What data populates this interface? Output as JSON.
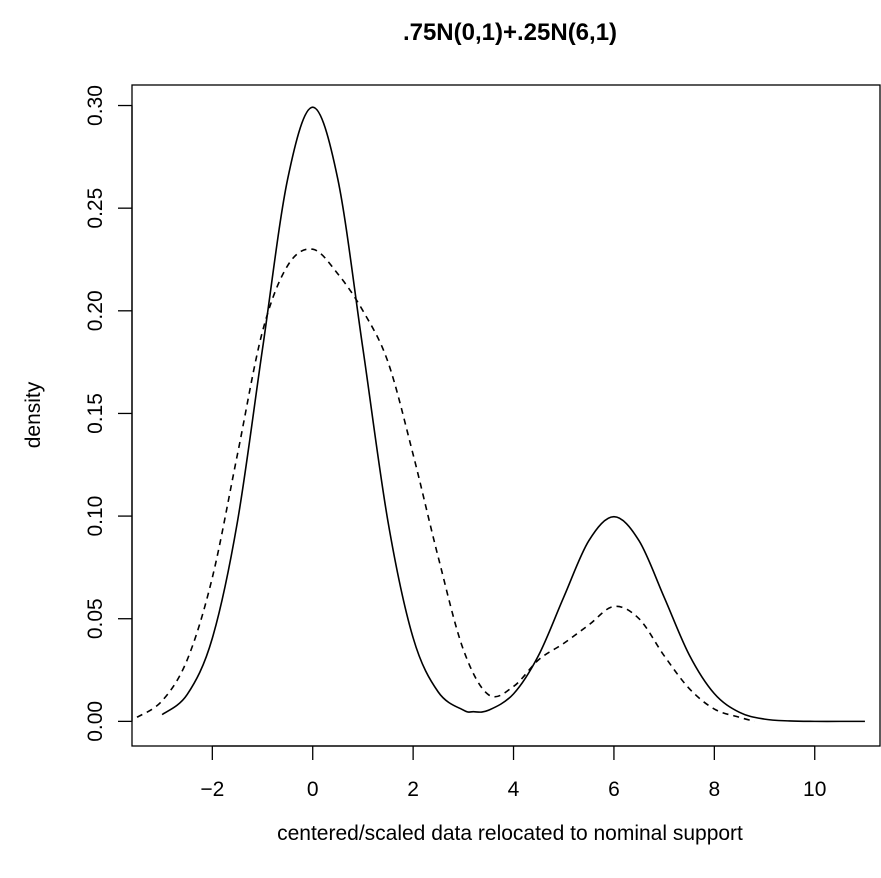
{
  "chart_data": {
    "type": "line",
    "title": ".75N(0,1)+.25N(6,1)",
    "xlabel": "centered/scaled data relocated to nominal support",
    "ylabel": "density",
    "xlim": [
      -3.6,
      11.3
    ],
    "ylim": [
      -0.012,
      0.31
    ],
    "x_ticks": [
      -2,
      0,
      2,
      4,
      6,
      8,
      10
    ],
    "x_tick_labels": [
      "−2",
      "0",
      "2",
      "4",
      "6",
      "8",
      "10"
    ],
    "y_ticks": [
      0.0,
      0.05,
      0.1,
      0.15,
      0.2,
      0.25,
      0.3
    ],
    "y_tick_labels": [
      "0.00",
      "0.05",
      "0.10",
      "0.15",
      "0.20",
      "0.25",
      "0.30"
    ],
    "grid": false,
    "series": [
      {
        "line_style": "solid",
        "color": "#000000",
        "x": [
          -3.0,
          -2.5,
          -2.0,
          -1.5,
          -1.0,
          -0.5,
          0.0,
          0.5,
          1.0,
          1.5,
          2.0,
          2.5,
          3.0,
          3.2,
          3.5,
          4.0,
          4.5,
          5.0,
          5.5,
          6.0,
          6.5,
          7.0,
          7.5,
          8.0,
          8.5,
          9.0,
          9.5,
          10.0,
          10.5,
          11.0
        ],
        "y": [
          0.0033,
          0.0131,
          0.0405,
          0.0972,
          0.1815,
          0.2641,
          0.2992,
          0.2641,
          0.1815,
          0.0972,
          0.0407,
          0.0143,
          0.0055,
          0.0047,
          0.0054,
          0.0134,
          0.0322,
          0.0605,
          0.088,
          0.0997,
          0.088,
          0.0605,
          0.0324,
          0.0135,
          0.0044,
          0.0011,
          0.0002,
          0.0,
          0.0,
          0.0
        ]
      },
      {
        "line_style": "dashed",
        "color": "#000000",
        "x": [
          -3.5,
          -3.0,
          -2.5,
          -2.0,
          -1.5,
          -1.0,
          -0.5,
          0.0,
          0.5,
          1.0,
          1.5,
          2.0,
          2.5,
          3.0,
          3.5,
          4.0,
          4.5,
          5.0,
          5.5,
          6.0,
          6.5,
          7.0,
          7.5,
          8.0,
          8.5,
          8.8
        ],
        "y": [
          0.002,
          0.01,
          0.03,
          0.07,
          0.13,
          0.19,
          0.222,
          0.23,
          0.218,
          0.2,
          0.175,
          0.13,
          0.08,
          0.035,
          0.013,
          0.017,
          0.03,
          0.038,
          0.047,
          0.056,
          0.05,
          0.032,
          0.016,
          0.006,
          0.002,
          0.0
        ]
      }
    ]
  }
}
